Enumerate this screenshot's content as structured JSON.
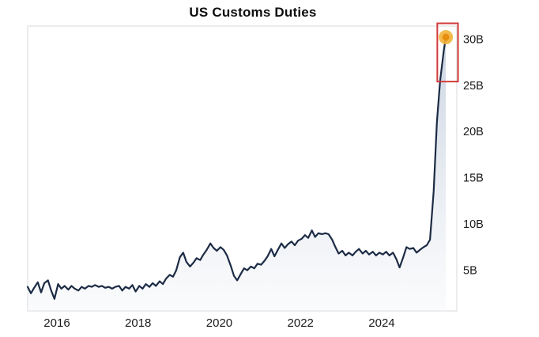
{
  "title": "US Customs Duties",
  "chart_data": {
    "type": "area",
    "title": "US Customs Duties",
    "xlabel": "",
    "ylabel": "",
    "unit": "billions USD",
    "xlim": [
      2015.28,
      2025.85
    ],
    "ylim": [
      0.6,
      31.4
    ],
    "grid": false,
    "legend": "none",
    "x_ticks": [
      {
        "label": "2016",
        "value": 2016
      },
      {
        "label": "2018",
        "value": 2018
      },
      {
        "label": "2020",
        "value": 2020
      },
      {
        "label": "2022",
        "value": 2022
      },
      {
        "label": "2024",
        "value": 2024
      }
    ],
    "y_ticks": [
      {
        "label": "5B",
        "value": 5
      },
      {
        "label": "10B",
        "value": 10
      },
      {
        "label": "15B",
        "value": 15
      },
      {
        "label": "20B",
        "value": 20
      },
      {
        "label": "25B",
        "value": 25
      },
      {
        "label": "30B",
        "value": 30
      }
    ],
    "points": [
      [
        2015.28,
        3.2
      ],
      [
        2015.36,
        2.5
      ],
      [
        2015.44,
        3.1
      ],
      [
        2015.53,
        3.7
      ],
      [
        2015.61,
        2.6
      ],
      [
        2015.69,
        3.6
      ],
      [
        2015.78,
        3.9
      ],
      [
        2015.86,
        2.8
      ],
      [
        2015.94,
        1.9
      ],
      [
        2016.03,
        3.5
      ],
      [
        2016.11,
        3.0
      ],
      [
        2016.19,
        3.3
      ],
      [
        2016.28,
        2.9
      ],
      [
        2016.36,
        3.3
      ],
      [
        2016.44,
        3.0
      ],
      [
        2016.53,
        2.8
      ],
      [
        2016.61,
        3.2
      ],
      [
        2016.69,
        3.0
      ],
      [
        2016.78,
        3.3
      ],
      [
        2016.86,
        3.2
      ],
      [
        2016.94,
        3.4
      ],
      [
        2017.03,
        3.2
      ],
      [
        2017.11,
        3.3
      ],
      [
        2017.19,
        3.1
      ],
      [
        2017.28,
        3.2
      ],
      [
        2017.36,
        3.0
      ],
      [
        2017.44,
        3.2
      ],
      [
        2017.53,
        3.3
      ],
      [
        2017.61,
        2.8
      ],
      [
        2017.69,
        3.2
      ],
      [
        2017.78,
        3.0
      ],
      [
        2017.86,
        3.4
      ],
      [
        2017.94,
        2.7
      ],
      [
        2018.03,
        3.3
      ],
      [
        2018.11,
        3.0
      ],
      [
        2018.19,
        3.5
      ],
      [
        2018.28,
        3.2
      ],
      [
        2018.36,
        3.6
      ],
      [
        2018.44,
        3.3
      ],
      [
        2018.53,
        3.8
      ],
      [
        2018.61,
        3.5
      ],
      [
        2018.69,
        4.1
      ],
      [
        2018.78,
        4.5
      ],
      [
        2018.86,
        4.3
      ],
      [
        2018.94,
        5.0
      ],
      [
        2019.03,
        6.4
      ],
      [
        2019.11,
        6.9
      ],
      [
        2019.19,
        5.9
      ],
      [
        2019.28,
        5.4
      ],
      [
        2019.36,
        5.8
      ],
      [
        2019.44,
        6.3
      ],
      [
        2019.53,
        6.1
      ],
      [
        2019.61,
        6.7
      ],
      [
        2019.69,
        7.2
      ],
      [
        2019.78,
        7.9
      ],
      [
        2019.86,
        7.4
      ],
      [
        2019.94,
        7.1
      ],
      [
        2020.03,
        7.5
      ],
      [
        2020.11,
        7.2
      ],
      [
        2020.19,
        6.6
      ],
      [
        2020.28,
        5.5
      ],
      [
        2020.36,
        4.4
      ],
      [
        2020.44,
        3.9
      ],
      [
        2020.53,
        4.6
      ],
      [
        2020.61,
        5.2
      ],
      [
        2020.69,
        5.0
      ],
      [
        2020.78,
        5.4
      ],
      [
        2020.86,
        5.2
      ],
      [
        2020.94,
        5.7
      ],
      [
        2021.03,
        5.6
      ],
      [
        2021.11,
        6.0
      ],
      [
        2021.19,
        6.5
      ],
      [
        2021.28,
        7.3
      ],
      [
        2021.36,
        6.5
      ],
      [
        2021.44,
        7.2
      ],
      [
        2021.53,
        7.9
      ],
      [
        2021.61,
        7.4
      ],
      [
        2021.69,
        7.8
      ],
      [
        2021.78,
        8.1
      ],
      [
        2021.86,
        7.7
      ],
      [
        2021.94,
        8.2
      ],
      [
        2022.03,
        8.4
      ],
      [
        2022.11,
        8.8
      ],
      [
        2022.19,
        8.5
      ],
      [
        2022.28,
        9.3
      ],
      [
        2022.36,
        8.6
      ],
      [
        2022.44,
        9.0
      ],
      [
        2022.53,
        8.9
      ],
      [
        2022.61,
        9.0
      ],
      [
        2022.69,
        8.9
      ],
      [
        2022.78,
        8.3
      ],
      [
        2022.86,
        7.5
      ],
      [
        2022.94,
        6.8
      ],
      [
        2023.03,
        7.1
      ],
      [
        2023.11,
        6.6
      ],
      [
        2023.19,
        6.9
      ],
      [
        2023.28,
        6.6
      ],
      [
        2023.36,
        7.0
      ],
      [
        2023.44,
        7.3
      ],
      [
        2023.53,
        6.8
      ],
      [
        2023.61,
        7.1
      ],
      [
        2023.69,
        6.7
      ],
      [
        2023.78,
        7.0
      ],
      [
        2023.86,
        6.6
      ],
      [
        2023.94,
        6.9
      ],
      [
        2024.03,
        6.7
      ],
      [
        2024.11,
        7.0
      ],
      [
        2024.19,
        6.6
      ],
      [
        2024.28,
        6.9
      ],
      [
        2024.36,
        6.2
      ],
      [
        2024.44,
        5.3
      ],
      [
        2024.53,
        6.4
      ],
      [
        2024.61,
        7.5
      ],
      [
        2024.69,
        7.3
      ],
      [
        2024.78,
        7.4
      ],
      [
        2024.86,
        6.9
      ],
      [
        2024.94,
        7.2
      ],
      [
        2025.03,
        7.5
      ],
      [
        2025.11,
        7.7
      ],
      [
        2025.19,
        8.3
      ],
      [
        2025.28,
        13.5
      ],
      [
        2025.36,
        21.0
      ],
      [
        2025.44,
        25.5
      ],
      [
        2025.53,
        28.8
      ],
      [
        2025.58,
        30.2
      ]
    ],
    "endpoint": {
      "x": 2025.58,
      "value": 30.2
    },
    "highlight_box": {
      "x0": 2025.37,
      "x1": 2025.88,
      "y0": 25.4,
      "y1": 31.7
    },
    "colors": {
      "line": "#1c2b45",
      "fill_top": "#9fb1c9",
      "fill_bottom": "#f2f4f7",
      "highlight_box": "#d23b3b",
      "marker_outer": "#f2b23a",
      "marker_inner": "#e68f0f",
      "axis_text": "#1a1a1a",
      "plot_border": "#d8d8d8",
      "background": "#ffffff"
    }
  }
}
